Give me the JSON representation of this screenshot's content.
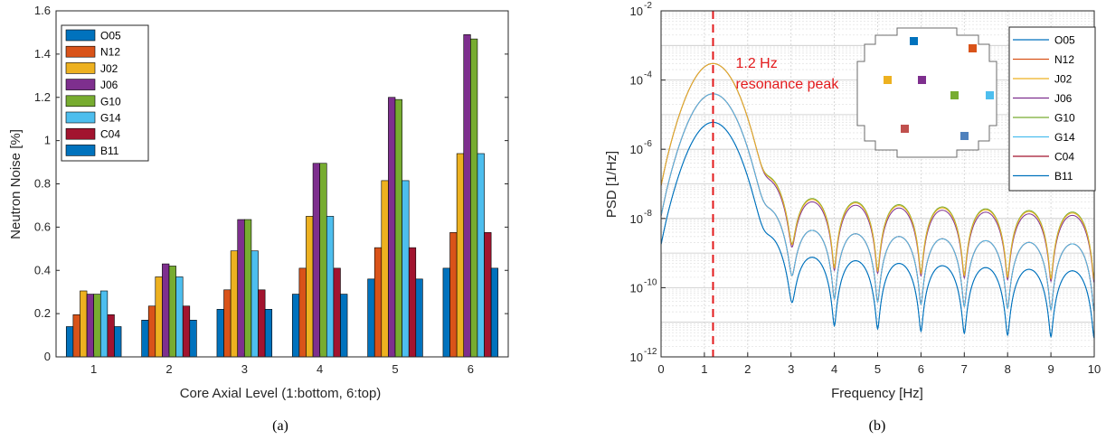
{
  "chart_data": [
    {
      "type": "bar",
      "panel_caption": "(a)",
      "xlabel": "Core Axial Level (1:bottom, 6:top)",
      "ylabel": "Neutron Noise [%]",
      "ylim": [
        0,
        1.6
      ],
      "yticks": [
        "0",
        "0.2",
        "0.4",
        "0.6",
        "0.8",
        "1",
        "1.2",
        "1.4",
        "1.6"
      ],
      "categories": [
        "1",
        "2",
        "3",
        "4",
        "5",
        "6"
      ],
      "legend_position": "top-left",
      "grid": false,
      "series": [
        {
          "name": "O05",
          "color": "#0072bd",
          "values": [
            0.14,
            0.17,
            0.22,
            0.29,
            0.36,
            0.41
          ]
        },
        {
          "name": "N12",
          "color": "#d95319",
          "values": [
            0.195,
            0.235,
            0.31,
            0.41,
            0.505,
            0.575
          ]
        },
        {
          "name": "J02",
          "color": "#edb120",
          "values": [
            0.305,
            0.37,
            0.49,
            0.65,
            0.815,
            0.94
          ]
        },
        {
          "name": "J06",
          "color": "#7e2f8e",
          "values": [
            0.29,
            0.43,
            0.635,
            0.895,
            1.2,
            1.49
          ]
        },
        {
          "name": "G10",
          "color": "#77ac30",
          "values": [
            0.29,
            0.42,
            0.635,
            0.895,
            1.19,
            1.47
          ]
        },
        {
          "name": "G14",
          "color": "#4dbeee",
          "values": [
            0.305,
            0.37,
            0.49,
            0.65,
            0.815,
            0.94
          ]
        },
        {
          "name": "C04",
          "color": "#a2142f",
          "values": [
            0.195,
            0.235,
            0.31,
            0.41,
            0.505,
            0.575
          ]
        },
        {
          "name": "B11",
          "color": "#0072bd",
          "values": [
            0.14,
            0.17,
            0.22,
            0.29,
            0.36,
            0.41
          ]
        }
      ]
    },
    {
      "type": "line",
      "panel_caption": "(b)",
      "xlabel": "Frequency [Hz]",
      "ylabel": "PSD [1/Hz]",
      "xlim": [
        0,
        10
      ],
      "ylog": true,
      "ylim_exp": [
        -12,
        -2
      ],
      "xticks": [
        "0",
        "1",
        "2",
        "3",
        "4",
        "5",
        "6",
        "7",
        "8",
        "9",
        "10"
      ],
      "ytick_base": "10",
      "ytick_exponents": [
        "-12",
        "-10",
        "-8",
        "-6",
        "-4",
        "-2"
      ],
      "grid": true,
      "legend_position": "right",
      "annotation": {
        "lines": [
          "1.2 Hz",
          "resonance peak"
        ],
        "x": 1.2,
        "color": "#e31a1c"
      },
      "series": [
        {
          "name": "O05",
          "color": "#0072bd",
          "peak": 6e-06,
          "floor": 3e-10
        },
        {
          "name": "N12",
          "color": "#d95319",
          "peak": 4e-05,
          "floor": 1.8e-09
        },
        {
          "name": "J02",
          "color": "#edb120",
          "peak": 0.0003,
          "floor": 1.4e-08
        },
        {
          "name": "J06",
          "color": "#7e2f8e",
          "peak": 0.0003,
          "floor": 1.2e-08
        },
        {
          "name": "G10",
          "color": "#77ac30",
          "peak": 0.0003,
          "floor": 1.5e-08
        },
        {
          "name": "G14",
          "color": "#4dbeee",
          "peak": 4e-05,
          "floor": 1.8e-09
        },
        {
          "name": "C04",
          "color": "#a2142f",
          "peak": 4e-05,
          "floor": 1.8e-09
        },
        {
          "name": "B11",
          "color": "#0072bd",
          "peak": 6e-06,
          "floor": 3e-10
        }
      ],
      "inset_markers": [
        {
          "name": "O05",
          "color": "#0072bd"
        },
        {
          "name": "N12",
          "color": "#d95319"
        },
        {
          "name": "J02",
          "color": "#edb120"
        },
        {
          "name": "J06",
          "color": "#7e2f8e"
        },
        {
          "name": "G10",
          "color": "#77ac30"
        },
        {
          "name": "G14",
          "color": "#4dbeee"
        },
        {
          "name": "C04",
          "color": "#c0504d"
        },
        {
          "name": "B11",
          "color": "#4f81bd"
        }
      ]
    }
  ]
}
